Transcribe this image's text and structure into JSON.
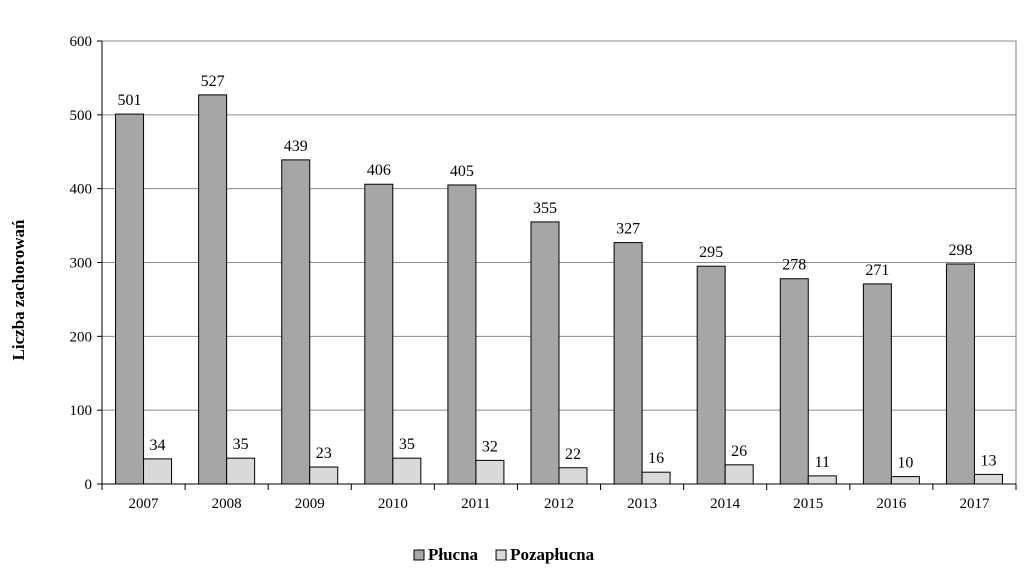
{
  "chart_data": {
    "type": "bar",
    "title": "",
    "xlabel": "",
    "ylabel": "Liczba zachorowań",
    "ylim": [
      0,
      600
    ],
    "yticks": [
      0,
      100,
      200,
      300,
      400,
      500,
      600
    ],
    "grid": true,
    "legend_position": "bottom",
    "categories": [
      "2007",
      "2008",
      "2009",
      "2010",
      "2011",
      "2012",
      "2013",
      "2014",
      "2015",
      "2016",
      "2017"
    ],
    "series": [
      {
        "name": "Płucna",
        "color": "#a6a6a6",
        "values": [
          501,
          527,
          439,
          406,
          405,
          355,
          327,
          295,
          278,
          271,
          298
        ]
      },
      {
        "name": "Pozapłucna",
        "color": "#d9d9d9",
        "values": [
          34,
          35,
          23,
          35,
          32,
          22,
          16,
          26,
          11,
          10,
          13
        ]
      }
    ]
  }
}
